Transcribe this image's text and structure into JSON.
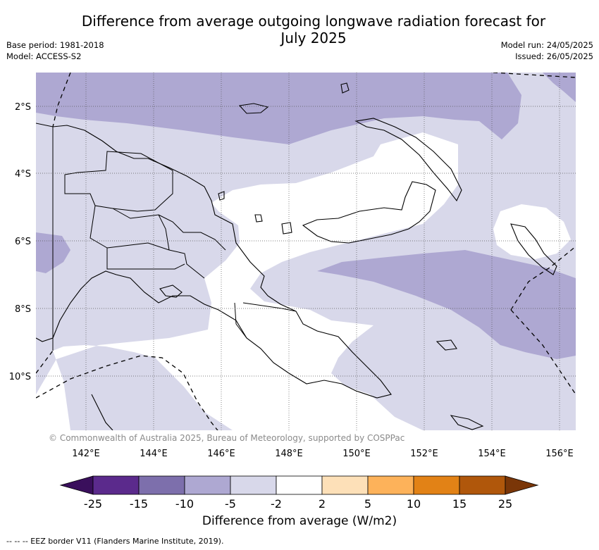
{
  "header": {
    "title_line1": "Difference from average outgoing longwave radiation forecast for",
    "title_line2": "July 2025",
    "base_period": "Base period: 1981-2018",
    "model": "Model: ACCESS-S2",
    "model_run": "Model run: 24/05/2025",
    "issued": "Issued: 26/05/2025"
  },
  "map": {
    "lat_labels": [
      "2°S",
      "4°S",
      "6°S",
      "8°S",
      "10°S"
    ],
    "lon_labels": [
      "142°E",
      "144°E",
      "146°E",
      "148°E",
      "150°E",
      "152°E",
      "154°E",
      "156°E"
    ],
    "copyright": "© Commonwealth of Australia 2025, Bureau of Meteorology, supported by COSPPac"
  },
  "colorbar": {
    "colors": [
      "#3a0f5c",
      "#5b2a8c",
      "#7d6fac",
      "#aea8d2",
      "#d8d8ea",
      "#ffffff",
      "#fde0b8",
      "#fdb25a",
      "#e28216",
      "#b0570b",
      "#7a3608"
    ],
    "tick_labels": [
      "-25",
      "-15",
      "-10",
      "-5",
      "-2",
      "2",
      "5",
      "10",
      "15",
      "25"
    ],
    "title": "Difference from average (W/m2)"
  },
  "legend": {
    "eez_note": "--  --  -- EEZ border V11 (Flanders Marine Institute, 2019)."
  }
}
